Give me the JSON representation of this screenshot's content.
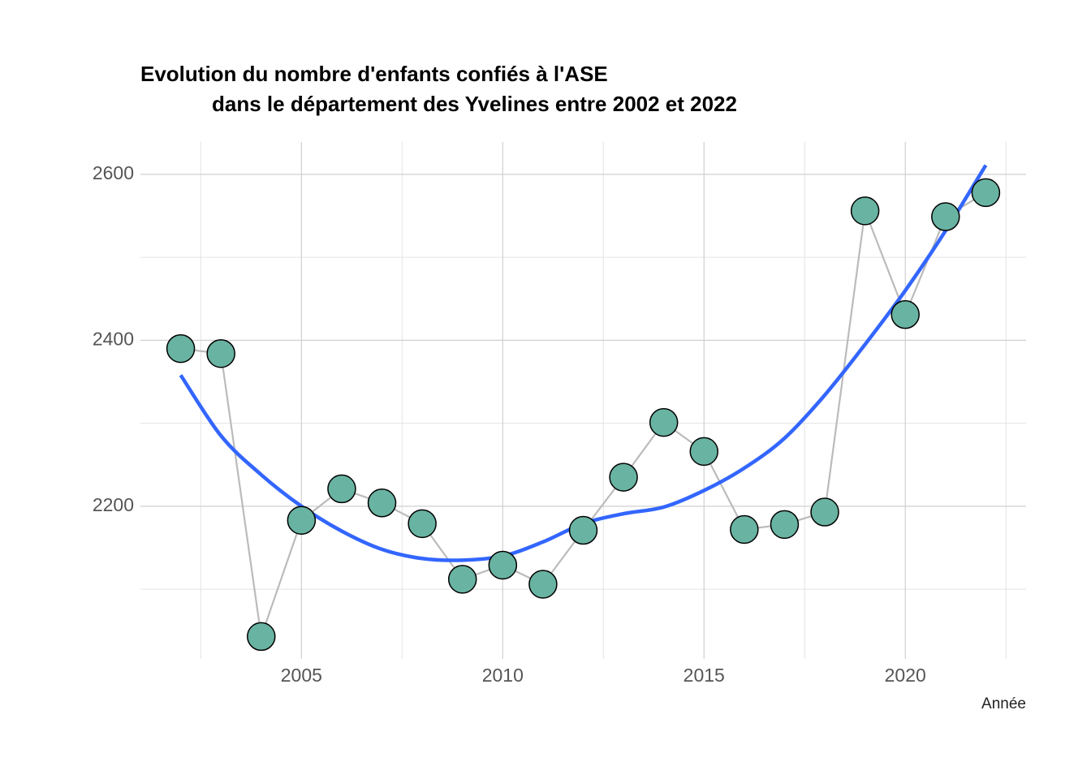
{
  "chart_data": {
    "type": "line",
    "title_lines": [
      "Evolution du nombre d'enfants confiés à l'ASE",
      "dans le département des Yvelines entre 2002 et 2022"
    ],
    "x_label": "Année",
    "x": [
      2002,
      2003,
      2004,
      2005,
      2006,
      2007,
      2008,
      2009,
      2010,
      2011,
      2012,
      2013,
      2014,
      2015,
      2016,
      2017,
      2018,
      2019,
      2020,
      2021,
      2022
    ],
    "series": [
      {
        "color": "#bbbbbb",
        "point_color": "#69b3a2",
        "values": [
          2390,
          2384,
          2043,
          2183,
          2221,
          2204,
          2179,
          2112,
          2129,
          2106,
          2171,
          2235,
          2301,
          2266,
          2172,
          2178,
          2193,
          2556,
          2431,
          2549,
          2578
        ]
      },
      {
        "color": "#3366ff",
        "smooth": true,
        "values": [
          2358,
          2285,
          2238,
          2200,
          2170,
          2148,
          2137,
          2135,
          2140,
          2157,
          2179,
          2191,
          2199,
          2219,
          2246,
          2282,
          2334,
          2395,
          2460,
          2532,
          2611
        ]
      }
    ],
    "xlim": [
      2001,
      2023
    ],
    "xticks": [
      2005,
      2010,
      2015,
      2020
    ],
    "xminor": [
      2002.5,
      2007.5,
      2012.5,
      2017.5,
      2022.5
    ],
    "ylim": [
      2016,
      2639
    ],
    "yticks": [
      2200,
      2400,
      2600
    ],
    "yminor": [
      2100,
      2300,
      2500
    ],
    "grid": true
  }
}
